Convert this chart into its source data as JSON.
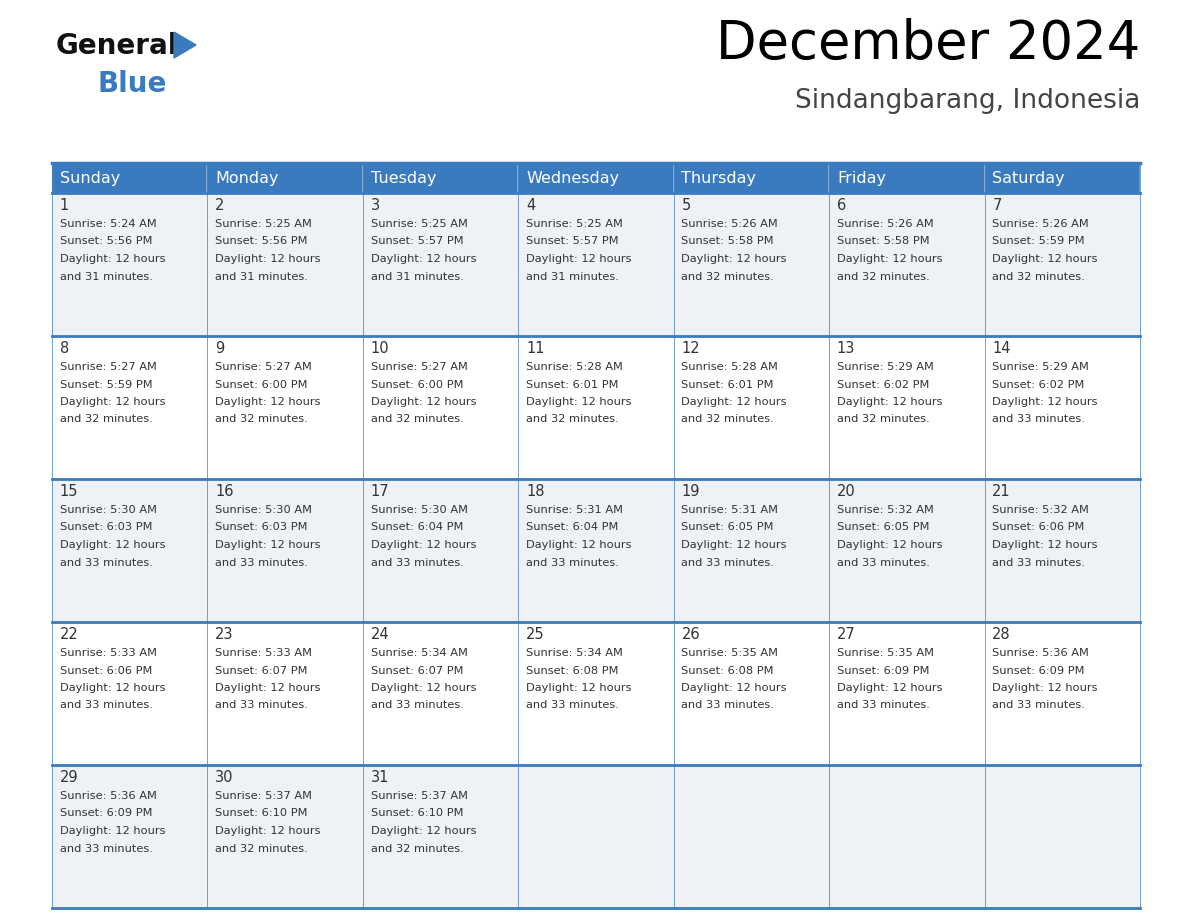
{
  "title": "December 2024",
  "subtitle": "Sindangbarang, Indonesia",
  "header_color": "#3a7abf",
  "header_text_color": "#ffffff",
  "cell_bg_color": "#eef2f7",
  "cell_bg_white": "#ffffff",
  "border_color": "#3a7abf",
  "text_color": "#333333",
  "days_of_week": [
    "Sunday",
    "Monday",
    "Tuesday",
    "Wednesday",
    "Thursday",
    "Friday",
    "Saturday"
  ],
  "weeks": [
    [
      {
        "day": 1,
        "sunrise": "5:24 AM",
        "sunset": "5:56 PM",
        "daylight": "12 hours and 31 minutes"
      },
      {
        "day": 2,
        "sunrise": "5:25 AM",
        "sunset": "5:56 PM",
        "daylight": "12 hours and 31 minutes"
      },
      {
        "day": 3,
        "sunrise": "5:25 AM",
        "sunset": "5:57 PM",
        "daylight": "12 hours and 31 minutes"
      },
      {
        "day": 4,
        "sunrise": "5:25 AM",
        "sunset": "5:57 PM",
        "daylight": "12 hours and 31 minutes"
      },
      {
        "day": 5,
        "sunrise": "5:26 AM",
        "sunset": "5:58 PM",
        "daylight": "12 hours and 32 minutes"
      },
      {
        "day": 6,
        "sunrise": "5:26 AM",
        "sunset": "5:58 PM",
        "daylight": "12 hours and 32 minutes"
      },
      {
        "day": 7,
        "sunrise": "5:26 AM",
        "sunset": "5:59 PM",
        "daylight": "12 hours and 32 minutes"
      }
    ],
    [
      {
        "day": 8,
        "sunrise": "5:27 AM",
        "sunset": "5:59 PM",
        "daylight": "12 hours and 32 minutes"
      },
      {
        "day": 9,
        "sunrise": "5:27 AM",
        "sunset": "6:00 PM",
        "daylight": "12 hours and 32 minutes"
      },
      {
        "day": 10,
        "sunrise": "5:27 AM",
        "sunset": "6:00 PM",
        "daylight": "12 hours and 32 minutes"
      },
      {
        "day": 11,
        "sunrise": "5:28 AM",
        "sunset": "6:01 PM",
        "daylight": "12 hours and 32 minutes"
      },
      {
        "day": 12,
        "sunrise": "5:28 AM",
        "sunset": "6:01 PM",
        "daylight": "12 hours and 32 minutes"
      },
      {
        "day": 13,
        "sunrise": "5:29 AM",
        "sunset": "6:02 PM",
        "daylight": "12 hours and 32 minutes"
      },
      {
        "day": 14,
        "sunrise": "5:29 AM",
        "sunset": "6:02 PM",
        "daylight": "12 hours and 33 minutes"
      }
    ],
    [
      {
        "day": 15,
        "sunrise": "5:30 AM",
        "sunset": "6:03 PM",
        "daylight": "12 hours and 33 minutes"
      },
      {
        "day": 16,
        "sunrise": "5:30 AM",
        "sunset": "6:03 PM",
        "daylight": "12 hours and 33 minutes"
      },
      {
        "day": 17,
        "sunrise": "5:30 AM",
        "sunset": "6:04 PM",
        "daylight": "12 hours and 33 minutes"
      },
      {
        "day": 18,
        "sunrise": "5:31 AM",
        "sunset": "6:04 PM",
        "daylight": "12 hours and 33 minutes"
      },
      {
        "day": 19,
        "sunrise": "5:31 AM",
        "sunset": "6:05 PM",
        "daylight": "12 hours and 33 minutes"
      },
      {
        "day": 20,
        "sunrise": "5:32 AM",
        "sunset": "6:05 PM",
        "daylight": "12 hours and 33 minutes"
      },
      {
        "day": 21,
        "sunrise": "5:32 AM",
        "sunset": "6:06 PM",
        "daylight": "12 hours and 33 minutes"
      }
    ],
    [
      {
        "day": 22,
        "sunrise": "5:33 AM",
        "sunset": "6:06 PM",
        "daylight": "12 hours and 33 minutes"
      },
      {
        "day": 23,
        "sunrise": "5:33 AM",
        "sunset": "6:07 PM",
        "daylight": "12 hours and 33 minutes"
      },
      {
        "day": 24,
        "sunrise": "5:34 AM",
        "sunset": "6:07 PM",
        "daylight": "12 hours and 33 minutes"
      },
      {
        "day": 25,
        "sunrise": "5:34 AM",
        "sunset": "6:08 PM",
        "daylight": "12 hours and 33 minutes"
      },
      {
        "day": 26,
        "sunrise": "5:35 AM",
        "sunset": "6:08 PM",
        "daylight": "12 hours and 33 minutes"
      },
      {
        "day": 27,
        "sunrise": "5:35 AM",
        "sunset": "6:09 PM",
        "daylight": "12 hours and 33 minutes"
      },
      {
        "day": 28,
        "sunrise": "5:36 AM",
        "sunset": "6:09 PM",
        "daylight": "12 hours and 33 minutes"
      }
    ],
    [
      {
        "day": 29,
        "sunrise": "5:36 AM",
        "sunset": "6:09 PM",
        "daylight": "12 hours and 33 minutes"
      },
      {
        "day": 30,
        "sunrise": "5:37 AM",
        "sunset": "6:10 PM",
        "daylight": "12 hours and 32 minutes"
      },
      {
        "day": 31,
        "sunrise": "5:37 AM",
        "sunset": "6:10 PM",
        "daylight": "12 hours and 32 minutes"
      },
      null,
      null,
      null,
      null
    ]
  ],
  "logo_general_color": "#111111",
  "logo_blue_color": "#3a7abf",
  "title_fontsize": 38,
  "subtitle_fontsize": 19,
  "day_num_fontsize": 10.5,
  "cell_text_fontsize": 8.2,
  "header_fontsize": 11.5
}
